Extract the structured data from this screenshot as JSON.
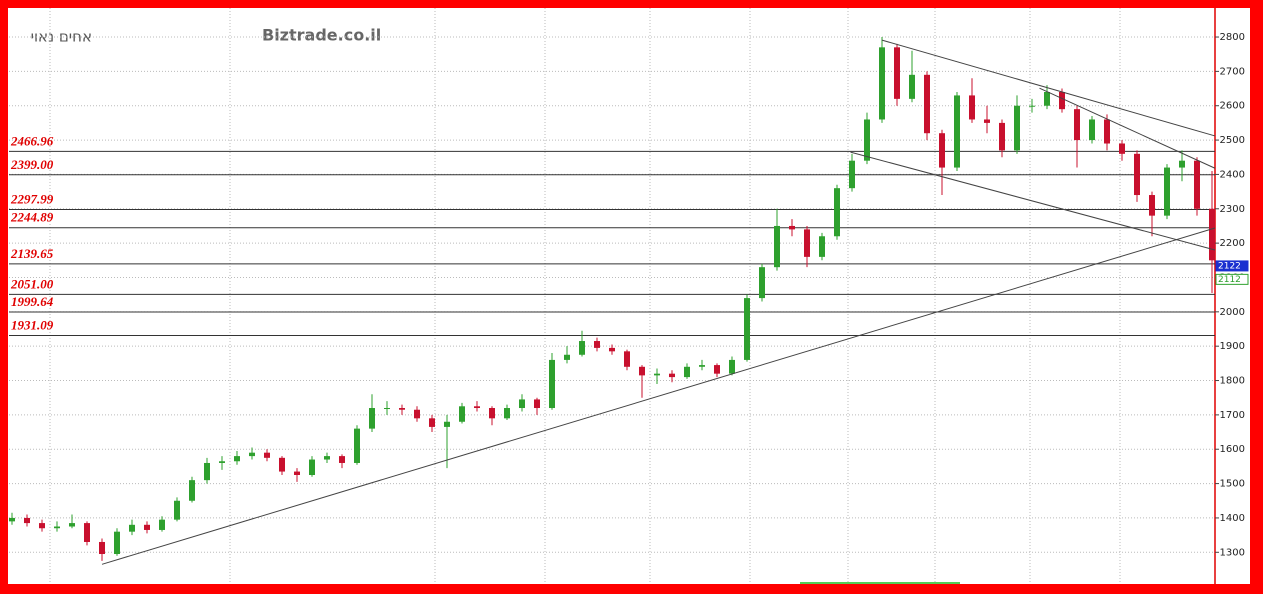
{
  "chart_data": {
    "type": "candlestick",
    "title": "אחים נאוי",
    "watermark": "Biztrade.co.il",
    "xlim": [
      -0.2,
      80.2
    ],
    "ylim": [
      1213.5,
      2884.5
    ],
    "yticks": [
      1300,
      1400,
      1500,
      1600,
      1700,
      1800,
      1900,
      2000,
      2100,
      2200,
      2300,
      2400,
      2500,
      2600,
      2700,
      2800
    ],
    "grid": true,
    "up_color": "#2ea02e",
    "down_color": "#c8102e",
    "ohlc": [
      [
        1390,
        1415,
        1380,
        1400
      ],
      [
        1400,
        1410,
        1375,
        1385
      ],
      [
        1385,
        1395,
        1360,
        1370
      ],
      [
        1370,
        1390,
        1360,
        1375
      ],
      [
        1375,
        1410,
        1370,
        1385
      ],
      [
        1385,
        1390,
        1320,
        1330
      ],
      [
        1330,
        1340,
        1275,
        1295
      ],
      [
        1295,
        1370,
        1290,
        1360
      ],
      [
        1360,
        1395,
        1350,
        1380
      ],
      [
        1380,
        1390,
        1355,
        1365
      ],
      [
        1365,
        1405,
        1360,
        1395
      ],
      [
        1395,
        1460,
        1390,
        1450
      ],
      [
        1450,
        1520,
        1445,
        1510
      ],
      [
        1510,
        1575,
        1500,
        1560
      ],
      [
        1560,
        1580,
        1540,
        1565
      ],
      [
        1565,
        1595,
        1555,
        1580
      ],
      [
        1580,
        1605,
        1570,
        1590
      ],
      [
        1590,
        1600,
        1565,
        1575
      ],
      [
        1575,
        1580,
        1525,
        1535
      ],
      [
        1535,
        1545,
        1505,
        1525
      ],
      [
        1525,
        1580,
        1520,
        1570
      ],
      [
        1570,
        1590,
        1560,
        1580
      ],
      [
        1580,
        1585,
        1545,
        1560
      ],
      [
        1560,
        1670,
        1555,
        1660
      ],
      [
        1660,
        1760,
        1650,
        1720
      ],
      [
        1720,
        1740,
        1700,
        1720
      ],
      [
        1720,
        1730,
        1700,
        1715
      ],
      [
        1715,
        1725,
        1680,
        1690
      ],
      [
        1690,
        1700,
        1650,
        1665
      ],
      [
        1665,
        1700,
        1545,
        1680
      ],
      [
        1680,
        1735,
        1675,
        1725
      ],
      [
        1725,
        1740,
        1710,
        1720
      ],
      [
        1720,
        1725,
        1670,
        1690
      ],
      [
        1690,
        1730,
        1685,
        1720
      ],
      [
        1720,
        1760,
        1710,
        1745
      ],
      [
        1745,
        1750,
        1700,
        1720
      ],
      [
        1720,
        1880,
        1715,
        1860
      ],
      [
        1860,
        1900,
        1850,
        1875
      ],
      [
        1875,
        1945,
        1870,
        1915
      ],
      [
        1915,
        1925,
        1885,
        1895
      ],
      [
        1895,
        1905,
        1875,
        1885
      ],
      [
        1885,
        1890,
        1830,
        1840
      ],
      [
        1840,
        1845,
        1750,
        1815
      ],
      [
        1815,
        1835,
        1790,
        1820
      ],
      [
        1820,
        1830,
        1795,
        1810
      ],
      [
        1810,
        1850,
        1805,
        1840
      ],
      [
        1840,
        1860,
        1830,
        1845
      ],
      [
        1845,
        1850,
        1810,
        1820
      ],
      [
        1820,
        1870,
        1815,
        1860
      ],
      [
        1860,
        2050,
        1855,
        2040
      ],
      [
        2040,
        2140,
        2030,
        2130
      ],
      [
        2130,
        2300,
        2120,
        2250
      ],
      [
        2250,
        2270,
        2220,
        2240
      ],
      [
        2240,
        2250,
        2130,
        2160
      ],
      [
        2160,
        2230,
        2150,
        2220
      ],
      [
        2220,
        2370,
        2210,
        2360
      ],
      [
        2360,
        2460,
        2350,
        2440
      ],
      [
        2440,
        2580,
        2430,
        2560
      ],
      [
        2560,
        2800,
        2550,
        2770
      ],
      [
        2770,
        2780,
        2600,
        2620
      ],
      [
        2620,
        2760,
        2610,
        2690
      ],
      [
        2690,
        2700,
        2500,
        2520
      ],
      [
        2520,
        2530,
        2340,
        2420
      ],
      [
        2420,
        2640,
        2410,
        2630
      ],
      [
        2630,
        2680,
        2550,
        2560
      ],
      [
        2560,
        2600,
        2520,
        2550
      ],
      [
        2550,
        2560,
        2450,
        2470
      ],
      [
        2470,
        2630,
        2460,
        2600
      ],
      [
        2600,
        2620,
        2580,
        2600
      ],
      [
        2600,
        2660,
        2590,
        2640
      ],
      [
        2640,
        2650,
        2580,
        2590
      ],
      [
        2590,
        2600,
        2420,
        2500
      ],
      [
        2500,
        2570,
        2490,
        2560
      ],
      [
        2560,
        2575,
        2470,
        2490
      ],
      [
        2490,
        2500,
        2440,
        2460
      ],
      [
        2460,
        2470,
        2320,
        2340
      ],
      [
        2340,
        2350,
        2220,
        2280
      ],
      [
        2280,
        2430,
        2270,
        2420
      ],
      [
        2420,
        2470,
        2380,
        2440
      ],
      [
        2440,
        2450,
        2280,
        2300
      ],
      [
        2300,
        2410,
        2055,
        2150
      ]
    ],
    "levels": [
      2466.96,
      {
        "value": 2399,
        "label": "2399.00"
      },
      2297.99,
      2244.89,
      2139.65,
      {
        "value": 2051,
        "label": "2051.00"
      },
      1999.64,
      1931.09
    ],
    "trendlines": [
      {
        "x": [
          6,
          80.2
        ],
        "y": [
          1265,
          2244
        ]
      },
      {
        "x": [
          58,
          80.2
        ],
        "y": [
          2791,
          2512
        ]
      },
      {
        "x": [
          68.5,
          80.2
        ],
        "y": [
          2651,
          2418
        ]
      },
      {
        "x": [
          55.9,
          80.2
        ],
        "y": [
          2465,
          2180
        ]
      }
    ],
    "price_tags": [
      2122,
      2112
    ]
  }
}
